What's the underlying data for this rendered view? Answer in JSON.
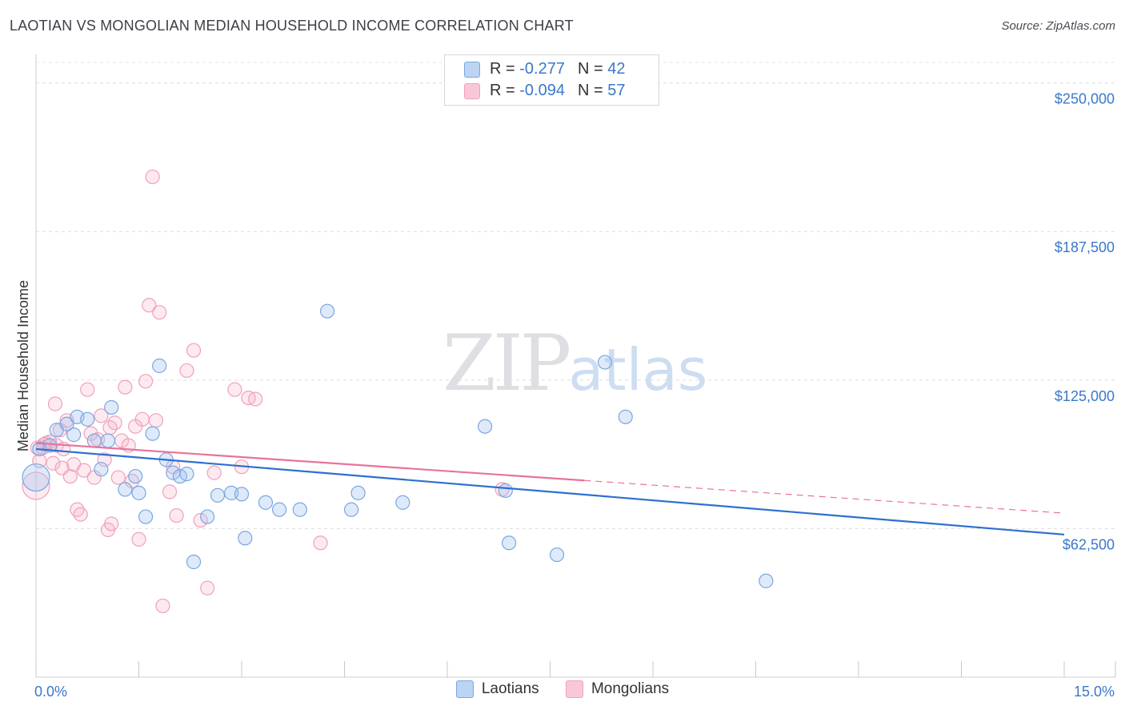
{
  "title": "LAOTIAN VS MONGOLIAN MEDIAN HOUSEHOLD INCOME CORRELATION CHART",
  "source": "Source: ZipAtlas.com",
  "watermark": {
    "zip": "ZIP",
    "atlas": "atlas"
  },
  "chart_data": {
    "type": "scatter",
    "title": "LAOTIAN VS MONGOLIAN MEDIAN HOUSEHOLD INCOME CORRELATION CHART",
    "xlabel": "",
    "ylabel": "Median Household Income",
    "xlim": [
      0,
      15
    ],
    "ylim": [
      0,
      262000
    ],
    "x_tick_labels": [
      "0.0%",
      "15.0%"
    ],
    "y_ticks": [
      62500,
      125000,
      187500,
      250000
    ],
    "y_tick_labels": [
      "$62,500",
      "$125,000",
      "$187,500",
      "$250,000"
    ],
    "grid": true,
    "legend_position": "top-center",
    "colors": {
      "laotians": "#7aa7e0",
      "mongolians": "#f0a0ba",
      "laotians_line": "#2e6fd1",
      "mongolians_line": "#e8739a",
      "tick_text": "#3b78c9"
    },
    "series": [
      {
        "name": "Laotians",
        "R": "-0.277",
        "N": "42",
        "points": [
          [
            0.0,
            84000
          ],
          [
            0.2,
            97500
          ],
          [
            0.3,
            104000
          ],
          [
            0.45,
            106500
          ],
          [
            0.55,
            102000
          ],
          [
            0.6,
            109500
          ],
          [
            0.75,
            108500
          ],
          [
            0.85,
            99500
          ],
          [
            0.95,
            87500
          ],
          [
            1.05,
            99500
          ],
          [
            1.1,
            113500
          ],
          [
            1.3,
            79000
          ],
          [
            1.45,
            84500
          ],
          [
            1.5,
            77500
          ],
          [
            1.6,
            67500
          ],
          [
            1.7,
            102500
          ],
          [
            1.8,
            131000
          ],
          [
            1.9,
            91500
          ],
          [
            2.0,
            86000
          ],
          [
            2.1,
            84500
          ],
          [
            2.2,
            85500
          ],
          [
            2.3,
            48500
          ],
          [
            2.5,
            67500
          ],
          [
            2.65,
            76500
          ],
          [
            2.85,
            77500
          ],
          [
            3.0,
            77000
          ],
          [
            3.05,
            58500
          ],
          [
            3.35,
            73500
          ],
          [
            3.55,
            70500
          ],
          [
            3.85,
            70500
          ],
          [
            4.25,
            154000
          ],
          [
            4.6,
            70500
          ],
          [
            4.7,
            77500
          ],
          [
            5.35,
            73500
          ],
          [
            6.55,
            105500
          ],
          [
            6.85,
            78500
          ],
          [
            6.9,
            56500
          ],
          [
            7.6,
            51500
          ],
          [
            8.3,
            132500
          ],
          [
            8.6,
            109500
          ],
          [
            10.65,
            40500
          ],
          [
            0.05,
            96000
          ]
        ],
        "trend": {
          "x": [
            0,
            15
          ],
          "y": [
            96000,
            60000
          ],
          "style": "solid"
        }
      },
      {
        "name": "Mongolians",
        "R": "-0.094",
        "N": "57",
        "points": [
          [
            0.0,
            80500
          ],
          [
            0.05,
            91000
          ],
          [
            0.1,
            96500
          ],
          [
            0.15,
            98500
          ],
          [
            0.2,
            99000
          ],
          [
            0.25,
            90000
          ],
          [
            0.28,
            115000
          ],
          [
            0.3,
            97500
          ],
          [
            0.35,
            104000
          ],
          [
            0.4,
            96000
          ],
          [
            0.45,
            108000
          ],
          [
            0.5,
            84500
          ],
          [
            0.55,
            89500
          ],
          [
            0.6,
            70500
          ],
          [
            0.65,
            68500
          ],
          [
            0.7,
            87000
          ],
          [
            0.75,
            121000
          ],
          [
            0.8,
            102500
          ],
          [
            0.85,
            84000
          ],
          [
            0.9,
            100000
          ],
          [
            1.0,
            91500
          ],
          [
            1.05,
            62000
          ],
          [
            1.1,
            64500
          ],
          [
            1.15,
            107000
          ],
          [
            1.2,
            84000
          ],
          [
            1.25,
            99500
          ],
          [
            1.3,
            122000
          ],
          [
            1.35,
            97500
          ],
          [
            1.4,
            82500
          ],
          [
            1.45,
            105500
          ],
          [
            1.5,
            58000
          ],
          [
            1.55,
            108500
          ],
          [
            1.6,
            124500
          ],
          [
            1.65,
            156500
          ],
          [
            1.7,
            210500
          ],
          [
            1.75,
            108000
          ],
          [
            1.8,
            153500
          ],
          [
            1.85,
            30000
          ],
          [
            1.95,
            78000
          ],
          [
            2.0,
            88500
          ],
          [
            2.05,
            68000
          ],
          [
            2.2,
            129000
          ],
          [
            2.3,
            137500
          ],
          [
            2.4,
            66000
          ],
          [
            2.5,
            37500
          ],
          [
            2.6,
            86000
          ],
          [
            2.9,
            121000
          ],
          [
            3.0,
            88500
          ],
          [
            3.1,
            117500
          ],
          [
            3.2,
            117000
          ],
          [
            4.15,
            56500
          ],
          [
            6.8,
            79000
          ],
          [
            0.12,
            98000
          ],
          [
            0.38,
            88000
          ],
          [
            0.95,
            110000
          ],
          [
            1.08,
            105000
          ],
          [
            0.02,
            96500
          ]
        ],
        "trend": {
          "x": [
            0,
            15
          ],
          "y": [
            98500,
            69000
          ],
          "solid_until_x": 8.0
        }
      }
    ]
  },
  "legend_top": {
    "rows": [
      {
        "r_label": "R =",
        "r_value": "-0.277",
        "n_label": "N =",
        "n_value": "42"
      },
      {
        "r_label": "R =",
        "r_value": "-0.094",
        "n_label": "N =",
        "n_value": "57"
      }
    ]
  },
  "legend_bottom": {
    "items": [
      "Laotians",
      "Mongolians"
    ]
  }
}
